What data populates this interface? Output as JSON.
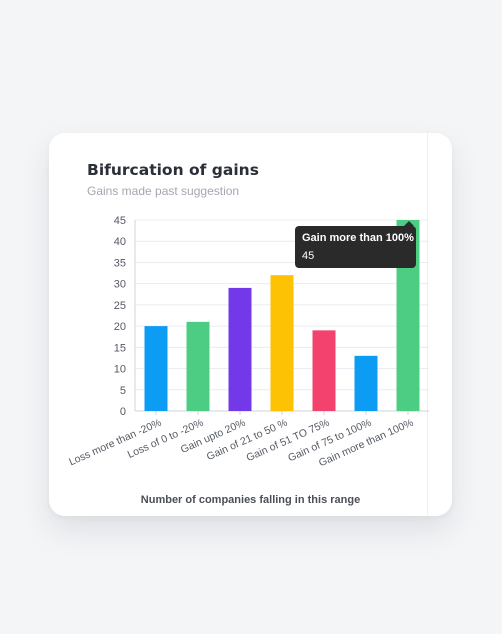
{
  "chart_data": {
    "type": "bar",
    "title": "Bifurcation of gains",
    "subtitle": "Gains made past suggestion",
    "xlabel": "Number of companies falling in this range",
    "ylabel": "",
    "ylim": [
      0,
      45
    ],
    "yticks": [
      0,
      5,
      10,
      15,
      20,
      25,
      30,
      35,
      40,
      45
    ],
    "grid": true,
    "categories": [
      "Loss more than -20%",
      "Loss of 0 to -20%",
      "Gain upto 20%",
      "Gain of 21 to 50 %",
      "Gain of 51 TO 75%",
      "Gain of 75 to 100%",
      "Gain more than 100%"
    ],
    "values": [
      20,
      21,
      29,
      32,
      19,
      13,
      45
    ],
    "colors": [
      "#0d9cf3",
      "#4ccd83",
      "#7338e8",
      "#fdc204",
      "#f2426d",
      "#0d9cf3",
      "#4ccd83"
    ]
  },
  "tooltip": {
    "title": "Gain more than 100%",
    "value": "45"
  }
}
